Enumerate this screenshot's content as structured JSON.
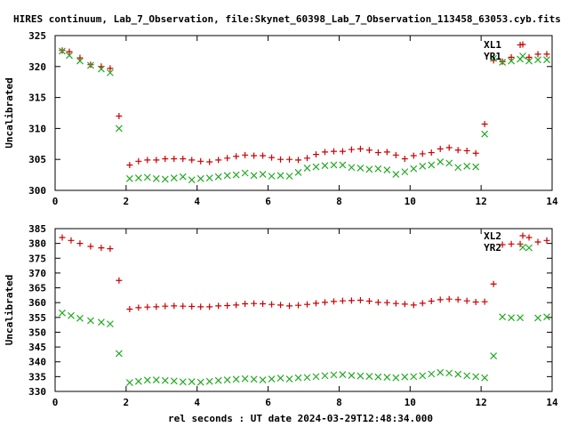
{
  "title": "HIRES continuum, Lab_7_Observation, file:Skynet_60398_Lab_7_Observation_113458_63053.cyb.fits",
  "xlabel": "rel seconds : UT date 2024-03-29T12:48:34.000",
  "colors": {
    "red": "#cc0000",
    "green": "#22aa22",
    "axis": "#000000"
  },
  "chart_data": [
    {
      "type": "scatter",
      "ylabel": "Uncalibrated",
      "xlim": [
        0,
        14
      ],
      "ylim": [
        300,
        325
      ],
      "xticks": [
        "0",
        "2",
        "4",
        "6",
        "8",
        "10",
        "12",
        "14"
      ],
      "yticks": [
        "300",
        "305",
        "310",
        "315",
        "320",
        "325"
      ],
      "x": [
        0.2,
        0.4,
        0.7,
        1.0,
        1.3,
        1.55,
        1.8,
        2.1,
        2.35,
        2.6,
        2.85,
        3.1,
        3.35,
        3.6,
        3.85,
        4.1,
        4.35,
        4.6,
        4.85,
        5.1,
        5.35,
        5.6,
        5.85,
        6.1,
        6.35,
        6.6,
        6.85,
        7.1,
        7.35,
        7.6,
        7.85,
        8.1,
        8.35,
        8.6,
        8.85,
        9.1,
        9.35,
        9.6,
        9.85,
        10.1,
        10.35,
        10.6,
        10.85,
        11.1,
        11.35,
        11.6,
        11.85,
        12.1,
        12.35,
        12.6,
        12.85,
        13.1,
        13.35,
        13.6,
        13.85
      ],
      "series": [
        {
          "name": "XL1",
          "marker": "plus",
          "color": "#cc0000",
          "values": [
            322.6,
            322.4,
            321.4,
            320.3,
            320.0,
            319.7,
            312.0,
            304.1,
            304.7,
            304.9,
            304.9,
            305.1,
            305.1,
            305.1,
            304.9,
            304.7,
            304.6,
            304.9,
            305.2,
            305.5,
            305.7,
            305.6,
            305.6,
            305.3,
            305.0,
            305.0,
            304.9,
            305.2,
            305.8,
            306.2,
            306.3,
            306.3,
            306.6,
            306.7,
            306.5,
            306.1,
            306.2,
            305.7,
            305.1,
            305.6,
            305.9,
            306.1,
            306.7,
            306.9,
            306.5,
            306.4,
            306.0,
            310.7,
            321.0,
            320.8,
            321.5,
            323.5,
            321.5,
            322.0,
            322.0
          ]
        },
        {
          "name": "YR1",
          "marker": "cross",
          "color": "#22aa22",
          "values": [
            322.5,
            321.8,
            320.9,
            320.2,
            319.6,
            319.0,
            310.0,
            301.9,
            302.0,
            302.1,
            301.9,
            301.8,
            302.0,
            302.2,
            301.7,
            301.9,
            302.0,
            302.2,
            302.4,
            302.5,
            302.8,
            302.4,
            302.6,
            302.3,
            302.4,
            302.3,
            302.9,
            303.6,
            303.8,
            304.0,
            304.1,
            304.1,
            303.7,
            303.6,
            303.4,
            303.5,
            303.3,
            302.6,
            303.0,
            303.5,
            303.9,
            304.1,
            304.6,
            304.4,
            303.7,
            303.9,
            303.8,
            309.1,
            321.3,
            320.7,
            320.9,
            321.2,
            320.9,
            321.1,
            321.1
          ]
        }
      ],
      "legend": "top-right"
    },
    {
      "type": "scatter",
      "ylabel": "Uncalibrated",
      "xlim": [
        0,
        14
      ],
      "ylim": [
        330,
        385
      ],
      "xticks": [
        "0",
        "2",
        "4",
        "6",
        "8",
        "10",
        "12",
        "14"
      ],
      "yticks": [
        "330",
        "335",
        "340",
        "345",
        "350",
        "355",
        "360",
        "365",
        "370",
        "375",
        "380",
        "385"
      ],
      "x": [
        0.2,
        0.45,
        0.7,
        1.0,
        1.3,
        1.55,
        1.8,
        2.1,
        2.35,
        2.6,
        2.85,
        3.1,
        3.35,
        3.6,
        3.85,
        4.1,
        4.35,
        4.6,
        4.85,
        5.1,
        5.35,
        5.6,
        5.85,
        6.1,
        6.35,
        6.6,
        6.85,
        7.1,
        7.35,
        7.6,
        7.85,
        8.1,
        8.35,
        8.6,
        8.85,
        9.1,
        9.35,
        9.6,
        9.85,
        10.1,
        10.35,
        10.6,
        10.85,
        11.1,
        11.35,
        11.6,
        11.85,
        12.1,
        12.35,
        12.6,
        12.85,
        13.1,
        13.35,
        13.6,
        13.85
      ],
      "series": [
        {
          "name": "XL2",
          "marker": "plus",
          "color": "#cc0000",
          "values": [
            382.0,
            381.0,
            380.0,
            379.0,
            378.5,
            378.2,
            367.5,
            357.8,
            358.3,
            358.5,
            358.6,
            358.8,
            358.9,
            358.8,
            358.7,
            358.6,
            358.6,
            358.9,
            359.0,
            359.2,
            359.6,
            359.7,
            359.6,
            359.4,
            359.2,
            358.9,
            359.1,
            359.4,
            359.8,
            360.1,
            360.4,
            360.6,
            360.7,
            360.8,
            360.5,
            360.1,
            360.0,
            359.7,
            359.5,
            359.2,
            359.8,
            360.5,
            361.0,
            361.2,
            361.0,
            360.6,
            360.2,
            360.3,
            366.3,
            379.6,
            379.8,
            379.8,
            382.0,
            380.5,
            381.0
          ]
        },
        {
          "name": "YR2",
          "marker": "cross",
          "color": "#22aa22",
          "values": [
            356.5,
            355.6,
            354.7,
            353.9,
            353.4,
            352.8,
            342.8,
            333.0,
            333.4,
            333.8,
            333.9,
            333.7,
            333.5,
            333.2,
            333.3,
            333.1,
            333.4,
            333.7,
            333.9,
            334.1,
            334.3,
            334.1,
            333.9,
            334.2,
            334.5,
            334.2,
            334.6,
            334.7,
            335.0,
            335.3,
            335.6,
            335.7,
            335.4,
            335.2,
            335.1,
            334.9,
            334.8,
            334.6,
            334.9,
            335.0,
            335.3,
            335.9,
            336.4,
            336.2,
            335.8,
            335.3,
            335.0,
            334.6,
            342.0,
            355.2,
            354.9,
            354.9,
            378.5,
            354.8,
            355.2
          ]
        }
      ],
      "legend": "top-right"
    }
  ]
}
